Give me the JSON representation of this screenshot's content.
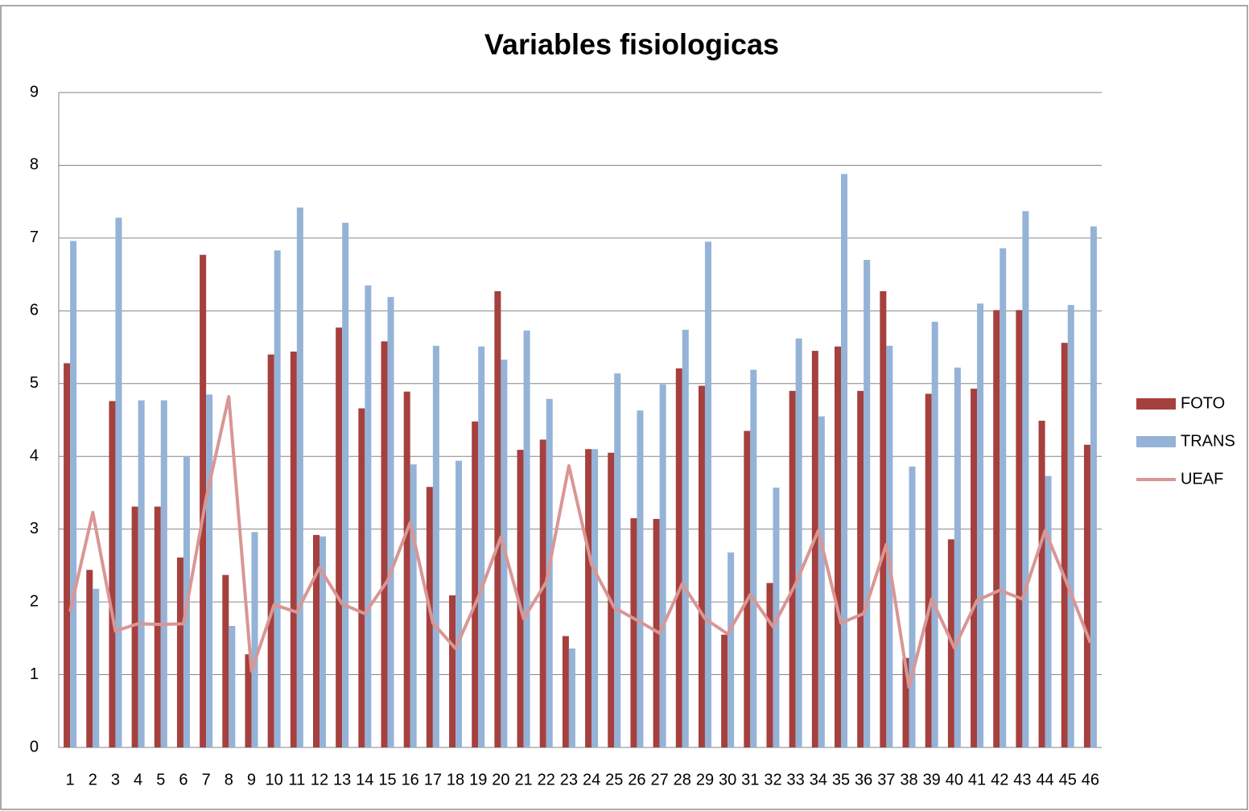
{
  "chart_data": {
    "type": "bar-line",
    "title": "Variables fisiologicas",
    "categories": [
      "1",
      "2",
      "3",
      "4",
      "5",
      "6",
      "7",
      "8",
      "9",
      "10",
      "11",
      "12",
      "13",
      "14",
      "15",
      "16",
      "17",
      "18",
      "19",
      "20",
      "21",
      "22",
      "23",
      "24",
      "25",
      "26",
      "27",
      "28",
      "29",
      "30",
      "31",
      "32",
      "33",
      "34",
      "35",
      "36",
      "37",
      "38",
      "39",
      "40",
      "41",
      "42",
      "43",
      "44",
      "45",
      "46"
    ],
    "series": [
      {
        "name": "FOTO",
        "type": "bar",
        "color": "#a5403e",
        "values": [
          5.28,
          2.44,
          4.76,
          3.31,
          3.31,
          2.61,
          6.77,
          2.37,
          1.28,
          5.4,
          5.44,
          2.92,
          5.77,
          4.66,
          5.58,
          4.89,
          3.58,
          2.09,
          4.48,
          6.27,
          4.09,
          4.23,
          1.53,
          4.1,
          4.05,
          3.15,
          3.14,
          5.21,
          4.97,
          1.55,
          4.35,
          2.26,
          4.9,
          5.45,
          5.51,
          4.9,
          6.27,
          1.23,
          4.86,
          2.86,
          4.93,
          6.01,
          6.01,
          4.49,
          5.56,
          4.16
        ]
      },
      {
        "name": "TRANS",
        "type": "bar",
        "color": "#95b3d7",
        "values": [
          6.96,
          2.18,
          7.28,
          4.77,
          4.77,
          3.99,
          4.85,
          1.67,
          2.96,
          6.83,
          7.42,
          2.9,
          7.21,
          6.35,
          6.19,
          3.89,
          5.52,
          3.94,
          5.51,
          5.33,
          5.73,
          4.79,
          1.36,
          4.1,
          5.14,
          4.63,
          4.99,
          5.74,
          6.95,
          2.68,
          5.19,
          3.57,
          5.62,
          4.55,
          7.88,
          6.7,
          5.52,
          3.86,
          5.85,
          5.22,
          6.1,
          6.86,
          7.37,
          3.73,
          6.08,
          7.16
        ]
      },
      {
        "name": "UEAF",
        "type": "line",
        "color": "#d99694",
        "values": [
          1.87,
          3.23,
          1.6,
          1.7,
          1.69,
          1.7,
          3.42,
          4.82,
          1.05,
          1.96,
          1.86,
          2.47,
          1.97,
          1.84,
          2.29,
          3.09,
          1.71,
          1.36,
          2.06,
          2.89,
          1.77,
          2.27,
          3.87,
          2.51,
          1.92,
          1.75,
          1.57,
          2.25,
          1.77,
          1.56,
          2.1,
          1.66,
          2.25,
          2.98,
          1.71,
          1.84,
          2.79,
          0.83,
          2.04,
          1.37,
          2.02,
          2.16,
          2.04,
          2.98,
          2.23,
          1.44
        ]
      }
    ],
    "ylim": [
      0,
      9
    ],
    "yticks": [
      0,
      1,
      2,
      3,
      4,
      5,
      6,
      7,
      8,
      9
    ],
    "grid": true,
    "legend": "right"
  }
}
